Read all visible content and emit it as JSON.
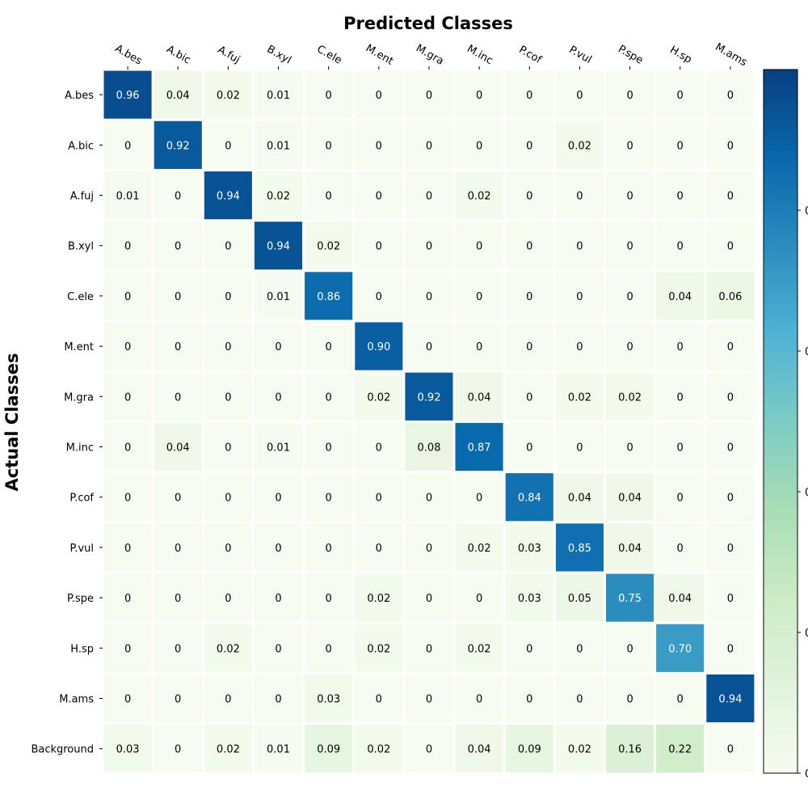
{
  "chart_data": {
    "type": "heatmap",
    "title": "Predicted Classes",
    "xlabel": "Predicted Classes",
    "ylabel": "Actual Classes",
    "colormap": "GnBu",
    "x_categories": [
      "A.bes",
      "A.bic",
      "A.fuj",
      "B.xyl",
      "C.ele",
      "M.ent",
      "M.gra",
      "M.inc",
      "P.cof",
      "P.vul",
      "P.spe",
      "H.sp",
      "M.ams"
    ],
    "y_categories": [
      "A.bes",
      "A.bic",
      "A.fuj",
      "B.xyl",
      "C.ele",
      "M.ent",
      "M.gra",
      "M.inc",
      "P.cof",
      "P.vul",
      "P.spe",
      "H.sp",
      "M.ams",
      "Background"
    ],
    "values": [
      [
        0.96,
        0.04,
        0.02,
        0.01,
        0,
        0,
        0,
        0,
        0,
        0,
        0,
        0,
        0
      ],
      [
        0,
        0.92,
        0,
        0.01,
        0,
        0,
        0,
        0,
        0,
        0.02,
        0,
        0,
        0
      ],
      [
        0.01,
        0,
        0.94,
        0.02,
        0,
        0,
        0,
        0.02,
        0,
        0,
        0,
        0,
        0
      ],
      [
        0,
        0,
        0,
        0.94,
        0.02,
        0,
        0,
        0,
        0,
        0,
        0,
        0,
        0
      ],
      [
        0,
        0,
        0,
        0.01,
        0.86,
        0,
        0,
        0,
        0,
        0,
        0,
        0.04,
        0.06
      ],
      [
        0,
        0,
        0,
        0,
        0,
        0.9,
        0,
        0,
        0,
        0,
        0,
        0,
        0
      ],
      [
        0,
        0,
        0,
        0,
        0,
        0.02,
        0.92,
        0.04,
        0,
        0.02,
        0.02,
        0,
        0
      ],
      [
        0,
        0.04,
        0,
        0.01,
        0,
        0,
        0.08,
        0.87,
        0,
        0,
        0,
        0,
        0
      ],
      [
        0,
        0,
        0,
        0,
        0,
        0,
        0,
        0,
        0.84,
        0.04,
        0.04,
        0,
        0
      ],
      [
        0,
        0,
        0,
        0,
        0,
        0,
        0,
        0.02,
        0.03,
        0.85,
        0.04,
        0,
        0
      ],
      [
        0,
        0,
        0,
        0,
        0,
        0.02,
        0,
        0,
        0.03,
        0.05,
        0.75,
        0.04,
        0
      ],
      [
        0,
        0,
        0.02,
        0,
        0,
        0.02,
        0,
        0.02,
        0,
        0,
        0,
        0.7,
        0
      ],
      [
        0,
        0,
        0,
        0,
        0.03,
        0,
        0,
        0,
        0,
        0,
        0,
        0,
        0.94
      ],
      [
        0.03,
        0,
        0.02,
        0.01,
        0.09,
        0.02,
        0,
        0.04,
        0.09,
        0.02,
        0.16,
        0.22,
        0
      ]
    ],
    "value_labels": [
      [
        "0.96",
        "0.04",
        "0.02",
        "0.01",
        "0",
        "0",
        "0",
        "0",
        "0",
        "0",
        "0",
        "0",
        "0"
      ],
      [
        "0",
        "0.92",
        "0",
        "0.01",
        "0",
        "0",
        "0",
        "0",
        "0",
        "0.02",
        "0",
        "0",
        "0"
      ],
      [
        "0.01",
        "0",
        "0.94",
        "0.02",
        "0",
        "0",
        "0",
        "0.02",
        "0",
        "0",
        "0",
        "0",
        "0"
      ],
      [
        "0",
        "0",
        "0",
        "0.94",
        "0.02",
        "0",
        "0",
        "0",
        "0",
        "0",
        "0",
        "0",
        "0"
      ],
      [
        "0",
        "0",
        "0",
        "0.01",
        "0.86",
        "0",
        "0",
        "0",
        "0",
        "0",
        "0",
        "0.04",
        "0.06"
      ],
      [
        "0",
        "0",
        "0",
        "0",
        "0",
        "0.90",
        "0",
        "0",
        "0",
        "0",
        "0",
        "0",
        "0"
      ],
      [
        "0",
        "0",
        "0",
        "0",
        "0",
        "0.02",
        "0.92",
        "0.04",
        "0",
        "0.02",
        "0.02",
        "0",
        "0"
      ],
      [
        "0",
        "0.04",
        "0",
        "0.01",
        "0",
        "0",
        "0.08",
        "0.87",
        "0",
        "0",
        "0",
        "0",
        "0"
      ],
      [
        "0",
        "0",
        "0",
        "0",
        "0",
        "0",
        "0",
        "0",
        "0.84",
        "0.04",
        "0.04",
        "0",
        "0"
      ],
      [
        "0",
        "0",
        "0",
        "0",
        "0",
        "0",
        "0",
        "0.02",
        "0.03",
        "0.85",
        "0.04",
        "0",
        "0"
      ],
      [
        "0",
        "0",
        "0",
        "0",
        "0",
        "0.02",
        "0",
        "0",
        "0.03",
        "0.05",
        "0.75",
        "0.04",
        "0"
      ],
      [
        "0",
        "0",
        "0.02",
        "0",
        "0",
        "0.02",
        "0",
        "0.02",
        "0",
        "0",
        "0",
        "0.70",
        "0"
      ],
      [
        "0",
        "0",
        "0",
        "0",
        "0.03",
        "0",
        "0",
        "0",
        "0",
        "0",
        "0",
        "0",
        "0.94"
      ],
      [
        "0.03",
        "0",
        "0.02",
        "0.01",
        "0.09",
        "0.02",
        "0",
        "0.04",
        "0.09",
        "0.02",
        "0.16",
        "0.22",
        "0"
      ]
    ],
    "colorbar": {
      "range": [
        0,
        1
      ],
      "tick_labels": [
        "0",
        "0",
        "0",
        "0",
        "0",
        "0"
      ]
    }
  }
}
